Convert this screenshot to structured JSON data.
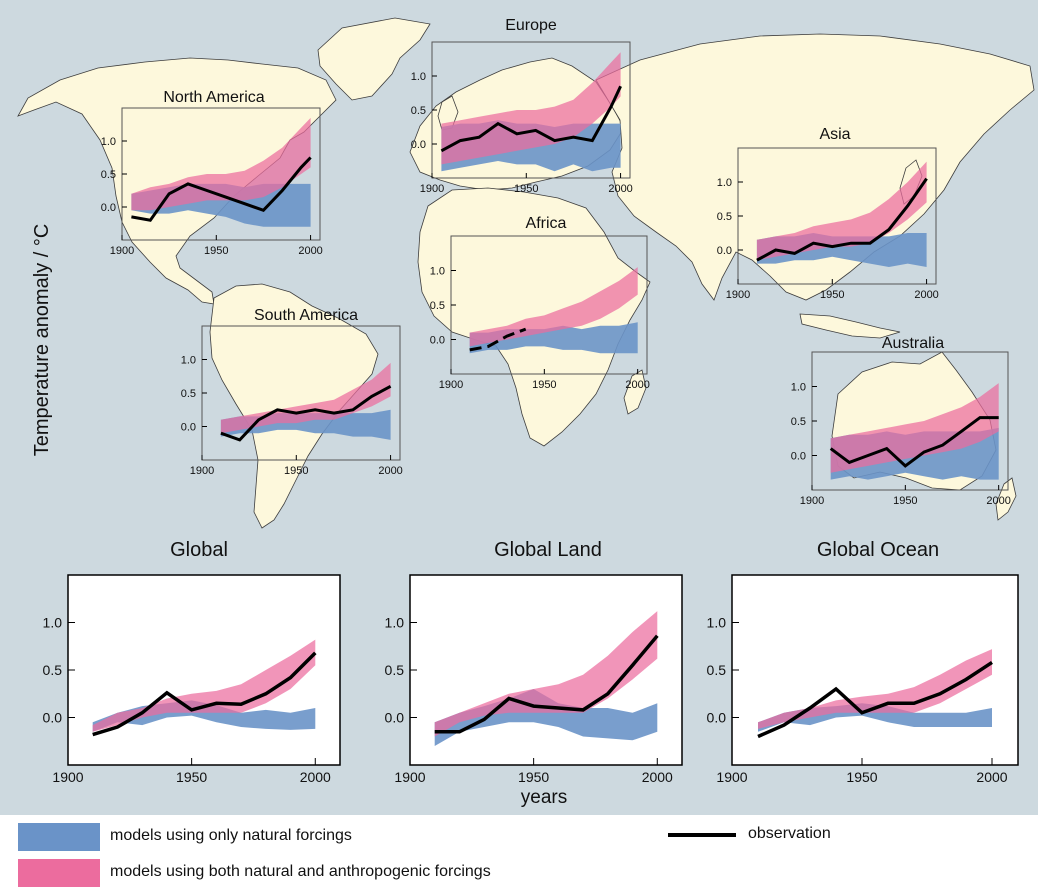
{
  "y_axis_label": "Temperature anomaly / °C",
  "x_axis_label": "years",
  "colors": {
    "ocean": "#cdd9df",
    "land": "#fdf8dc",
    "coast": "#3d3d3d",
    "natural": "#6a93c8",
    "anthropogenic": "#ec6c9e",
    "overlap": "#8a5b9b",
    "observation": "#000000"
  },
  "legend": {
    "natural": "models using only natural forcings",
    "anthropogenic": "models using both natural and anthropogenic forcings",
    "observation": "observation"
  },
  "chart_data": [
    {
      "type": "area",
      "title": "North America",
      "xlim": [
        1900,
        2005
      ],
      "ylim": [
        -0.5,
        1.5
      ],
      "xticks": [
        1900,
        1950,
        2000
      ],
      "yticks": [
        0.0,
        0.5,
        1.0
      ],
      "x": [
        1905,
        1915,
        1925,
        1935,
        1945,
        1955,
        1965,
        1975,
        1985,
        1995,
        2000
      ],
      "series": [
        {
          "name": "models using only natural forcings",
          "lower": [
            -0.05,
            -0.1,
            -0.1,
            -0.05,
            -0.1,
            -0.15,
            -0.25,
            -0.3,
            -0.3,
            -0.3,
            -0.3
          ],
          "upper": [
            0.2,
            0.25,
            0.3,
            0.35,
            0.35,
            0.35,
            0.3,
            0.35,
            0.35,
            0.35,
            0.35
          ]
        },
        {
          "name": "models using both natural and anthropogenic forcings",
          "lower": [
            -0.05,
            -0.05,
            0.0,
            0.05,
            0.1,
            0.1,
            0.1,
            0.15,
            0.3,
            0.5,
            0.6
          ],
          "upper": [
            0.2,
            0.3,
            0.35,
            0.45,
            0.5,
            0.5,
            0.55,
            0.7,
            0.9,
            1.2,
            1.35
          ]
        },
        {
          "name": "observation",
          "x": [
            1905,
            1915,
            1925,
            1935,
            1945,
            1955,
            1965,
            1975,
            1985,
            1995,
            2000
          ],
          "y": [
            -0.15,
            -0.2,
            0.2,
            0.35,
            0.25,
            0.15,
            0.05,
            -0.05,
            0.25,
            0.6,
            0.75
          ]
        }
      ]
    },
    {
      "type": "area",
      "title": "Europe",
      "xlim": [
        1900,
        2005
      ],
      "ylim": [
        -0.5,
        1.5
      ],
      "xticks": [
        1900,
        1950,
        2000
      ],
      "yticks": [
        0.0,
        0.5,
        1.0
      ],
      "x": [
        1905,
        1915,
        1925,
        1935,
        1945,
        1955,
        1965,
        1975,
        1985,
        1995,
        2000
      ],
      "series": [
        {
          "name": "models using only natural forcings",
          "lower": [
            -0.4,
            -0.35,
            -0.3,
            -0.25,
            -0.3,
            -0.3,
            -0.4,
            -0.3,
            -0.4,
            -0.35,
            -0.35
          ],
          "upper": [
            0.25,
            0.3,
            0.3,
            0.35,
            0.3,
            0.3,
            0.25,
            0.3,
            0.3,
            0.3,
            0.3
          ]
        },
        {
          "name": "models using both natural and anthropogenic forcings",
          "lower": [
            -0.3,
            -0.25,
            -0.2,
            -0.15,
            -0.1,
            -0.05,
            0.0,
            0.1,
            0.3,
            0.55,
            0.7
          ],
          "upper": [
            0.3,
            0.35,
            0.4,
            0.45,
            0.5,
            0.5,
            0.55,
            0.65,
            0.9,
            1.2,
            1.35
          ]
        },
        {
          "name": "observation",
          "x": [
            1905,
            1915,
            1925,
            1935,
            1945,
            1955,
            1965,
            1975,
            1985,
            1995,
            2000
          ],
          "y": [
            -0.1,
            0.05,
            0.1,
            0.3,
            0.15,
            0.2,
            0.05,
            0.1,
            0.05,
            0.55,
            0.85
          ]
        }
      ]
    },
    {
      "type": "area",
      "title": "Asia",
      "xlim": [
        1900,
        2005
      ],
      "ylim": [
        -0.5,
        1.5
      ],
      "xticks": [
        1900,
        1950,
        2000
      ],
      "yticks": [
        0.0,
        0.5,
        1.0
      ],
      "x": [
        1910,
        1920,
        1930,
        1940,
        1950,
        1960,
        1970,
        1980,
        1990,
        2000
      ],
      "series": [
        {
          "name": "models using only natural forcings",
          "lower": [
            -0.2,
            -0.2,
            -0.15,
            -0.15,
            -0.1,
            -0.15,
            -0.2,
            -0.25,
            -0.2,
            -0.25
          ],
          "upper": [
            0.15,
            0.2,
            0.2,
            0.25,
            0.2,
            0.2,
            0.2,
            0.2,
            0.25,
            0.25
          ]
        },
        {
          "name": "models using both natural and anthropogenic forcings",
          "lower": [
            -0.15,
            -0.1,
            -0.05,
            0.0,
            0.05,
            0.05,
            0.1,
            0.25,
            0.45,
            0.7
          ],
          "upper": [
            0.15,
            0.2,
            0.25,
            0.35,
            0.4,
            0.45,
            0.55,
            0.75,
            1.0,
            1.3
          ]
        },
        {
          "name": "observation",
          "x": [
            1910,
            1920,
            1930,
            1940,
            1950,
            1960,
            1970,
            1980,
            1990,
            2000
          ],
          "y": [
            -0.15,
            0.0,
            -0.05,
            0.1,
            0.05,
            0.1,
            0.1,
            0.3,
            0.65,
            1.05
          ]
        }
      ]
    },
    {
      "type": "area",
      "title": "Africa",
      "xlim": [
        1900,
        2005
      ],
      "ylim": [
        -0.5,
        1.5
      ],
      "xticks": [
        1900,
        1950,
        2000
      ],
      "yticks": [
        0.0,
        0.5,
        1.0
      ],
      "x": [
        1910,
        1920,
        1930,
        1940,
        1950,
        1960,
        1970,
        1980,
        1990,
        2000
      ],
      "series": [
        {
          "name": "models using only natural forcings",
          "lower": [
            -0.2,
            -0.15,
            -0.15,
            -0.1,
            -0.1,
            -0.15,
            -0.15,
            -0.2,
            -0.2,
            -0.2
          ],
          "upper": [
            0.1,
            0.1,
            0.15,
            0.15,
            0.15,
            0.2,
            0.15,
            0.2,
            0.2,
            0.25
          ]
        },
        {
          "name": "models using both natural and anthropogenic forcings",
          "lower": [
            -0.1,
            -0.05,
            0.0,
            0.05,
            0.1,
            0.15,
            0.2,
            0.3,
            0.45,
            0.65
          ],
          "upper": [
            0.1,
            0.15,
            0.2,
            0.3,
            0.35,
            0.45,
            0.55,
            0.7,
            0.85,
            1.05
          ]
        },
        {
          "name": "observation",
          "x": [
            1910,
            1920,
            1930,
            1940
          ],
          "y": [
            -0.15,
            -0.1,
            0.05,
            0.15
          ],
          "dashed": true
        }
      ]
    },
    {
      "type": "area",
      "title": "South America",
      "xlim": [
        1900,
        2005
      ],
      "ylim": [
        -0.5,
        1.5
      ],
      "xticks": [
        1900,
        1950,
        2000
      ],
      "yticks": [
        0.0,
        0.5,
        1.0
      ],
      "x": [
        1910,
        1920,
        1930,
        1940,
        1950,
        1960,
        1970,
        1980,
        1990,
        2000
      ],
      "series": [
        {
          "name": "models using only natural forcings",
          "lower": [
            -0.15,
            -0.1,
            -0.1,
            -0.05,
            -0.05,
            -0.1,
            -0.1,
            -0.15,
            -0.15,
            -0.2
          ],
          "upper": [
            0.1,
            0.15,
            0.15,
            0.2,
            0.2,
            0.2,
            0.2,
            0.2,
            0.2,
            0.25
          ]
        },
        {
          "name": "models using both natural and anthropogenic forcings",
          "lower": [
            -0.1,
            -0.05,
            0.0,
            0.05,
            0.05,
            0.1,
            0.1,
            0.2,
            0.3,
            0.45
          ],
          "upper": [
            0.1,
            0.15,
            0.2,
            0.25,
            0.3,
            0.35,
            0.4,
            0.55,
            0.7,
            0.95
          ]
        },
        {
          "name": "observation",
          "x": [
            1910,
            1920,
            1930,
            1940,
            1950,
            1960,
            1970,
            1980,
            1990,
            2000
          ],
          "y": [
            -0.1,
            -0.2,
            0.1,
            0.25,
            0.2,
            0.25,
            0.2,
            0.25,
            0.45,
            0.6
          ]
        }
      ]
    },
    {
      "type": "area",
      "title": "Australia",
      "xlim": [
        1900,
        2005
      ],
      "ylim": [
        -0.5,
        1.5
      ],
      "xticks": [
        1900,
        1950,
        2000
      ],
      "yticks": [
        0.0,
        0.5,
        1.0
      ],
      "x": [
        1910,
        1920,
        1930,
        1940,
        1950,
        1960,
        1970,
        1980,
        1990,
        2000
      ],
      "series": [
        {
          "name": "models using only natural forcings",
          "lower": [
            -0.35,
            -0.3,
            -0.35,
            -0.3,
            -0.25,
            -0.3,
            -0.35,
            -0.3,
            -0.35,
            -0.35
          ],
          "upper": [
            0.25,
            0.3,
            0.3,
            0.35,
            0.3,
            0.35,
            0.35,
            0.35,
            0.35,
            0.4
          ]
        },
        {
          "name": "models using both natural and anthropogenic forcings",
          "lower": [
            -0.25,
            -0.2,
            -0.15,
            -0.1,
            -0.05,
            0.0,
            0.05,
            0.1,
            0.2,
            0.35
          ],
          "upper": [
            0.25,
            0.3,
            0.35,
            0.4,
            0.45,
            0.5,
            0.6,
            0.7,
            0.85,
            1.05
          ]
        },
        {
          "name": "observation",
          "x": [
            1910,
            1920,
            1930,
            1940,
            1950,
            1960,
            1970,
            1980,
            1990,
            2000
          ],
          "y": [
            0.1,
            -0.1,
            0.0,
            0.1,
            -0.15,
            0.05,
            0.15,
            0.35,
            0.55,
            0.55
          ]
        }
      ]
    },
    {
      "type": "area",
      "title": "Global",
      "xlim": [
        1900,
        2010
      ],
      "ylim": [
        -0.5,
        1.5
      ],
      "xticks": [
        1900,
        1950,
        2000
      ],
      "yticks": [
        0.0,
        0.5,
        1.0
      ],
      "x": [
        1910,
        1920,
        1930,
        1940,
        1950,
        1960,
        1970,
        1980,
        1990,
        2000
      ],
      "series": [
        {
          "name": "models using only natural forcings",
          "lower": [
            -0.15,
            -0.05,
            -0.08,
            0.0,
            0.02,
            -0.05,
            -0.1,
            -0.12,
            -0.13,
            -0.12
          ],
          "upper": [
            -0.05,
            0.05,
            0.12,
            0.15,
            0.18,
            0.13,
            0.05,
            0.08,
            0.05,
            0.1
          ]
        },
        {
          "name": "models using both natural and anthropogenic forcings",
          "lower": [
            -0.15,
            -0.08,
            0.0,
            0.05,
            0.05,
            0.05,
            0.05,
            0.15,
            0.3,
            0.55
          ],
          "upper": [
            -0.08,
            0.05,
            0.1,
            0.2,
            0.25,
            0.28,
            0.35,
            0.5,
            0.65,
            0.82
          ]
        },
        {
          "name": "observation",
          "x": [
            1910,
            1920,
            1930,
            1940,
            1950,
            1960,
            1970,
            1980,
            1990,
            2000
          ],
          "y": [
            -0.18,
            -0.1,
            0.05,
            0.26,
            0.08,
            0.15,
            0.14,
            0.25,
            0.42,
            0.68
          ]
        }
      ]
    },
    {
      "type": "area",
      "title": "Global Land",
      "xlim": [
        1900,
        2010
      ],
      "ylim": [
        -0.5,
        1.5
      ],
      "xticks": [
        1900,
        1950,
        2000
      ],
      "yticks": [
        0.0,
        0.5,
        1.0
      ],
      "x": [
        1910,
        1920,
        1930,
        1940,
        1950,
        1960,
        1970,
        1980,
        1990,
        2000
      ],
      "series": [
        {
          "name": "models using only natural forcings",
          "lower": [
            -0.3,
            -0.15,
            -0.1,
            -0.05,
            -0.05,
            -0.1,
            -0.2,
            -0.22,
            -0.24,
            -0.15
          ],
          "upper": [
            -0.05,
            0.05,
            0.12,
            0.2,
            0.3,
            0.15,
            0.1,
            0.1,
            0.05,
            0.15
          ]
        },
        {
          "name": "models using both natural and anthropogenic forcings",
          "lower": [
            -0.2,
            -0.05,
            0.02,
            0.05,
            0.05,
            0.05,
            0.05,
            0.2,
            0.4,
            0.62
          ],
          "upper": [
            -0.05,
            0.05,
            0.15,
            0.25,
            0.3,
            0.35,
            0.45,
            0.65,
            0.9,
            1.12
          ]
        },
        {
          "name": "observation",
          "x": [
            1910,
            1920,
            1930,
            1940,
            1950,
            1960,
            1970,
            1980,
            1990,
            2000
          ],
          "y": [
            -0.15,
            -0.15,
            -0.02,
            0.2,
            0.12,
            0.1,
            0.08,
            0.25,
            0.55,
            0.86
          ]
        }
      ]
    },
    {
      "type": "area",
      "title": "Global Ocean",
      "xlim": [
        1900,
        2010
      ],
      "ylim": [
        -0.5,
        1.5
      ],
      "xticks": [
        1900,
        1950,
        2000
      ],
      "yticks": [
        0.0,
        0.5,
        1.0
      ],
      "x": [
        1910,
        1920,
        1930,
        1940,
        1950,
        1960,
        1970,
        1980,
        1990,
        2000
      ],
      "series": [
        {
          "name": "models using only natural forcings",
          "lower": [
            -0.15,
            -0.05,
            -0.08,
            0.0,
            0.02,
            -0.05,
            -0.1,
            -0.1,
            -0.1,
            -0.1
          ],
          "upper": [
            -0.05,
            0.05,
            0.1,
            0.12,
            0.15,
            0.12,
            0.05,
            0.05,
            0.05,
            0.1
          ]
        },
        {
          "name": "models using both natural and anthropogenic forcings",
          "lower": [
            -0.12,
            -0.05,
            0.0,
            0.05,
            0.05,
            0.05,
            0.05,
            0.15,
            0.3,
            0.45
          ],
          "upper": [
            -0.05,
            0.05,
            0.1,
            0.18,
            0.22,
            0.25,
            0.32,
            0.45,
            0.6,
            0.72
          ]
        },
        {
          "name": "observation",
          "x": [
            1910,
            1920,
            1930,
            1940,
            1950,
            1960,
            1970,
            1980,
            1990,
            2000
          ],
          "y": [
            -0.2,
            -0.08,
            0.1,
            0.3,
            0.05,
            0.15,
            0.15,
            0.25,
            0.4,
            0.58
          ]
        }
      ]
    }
  ]
}
